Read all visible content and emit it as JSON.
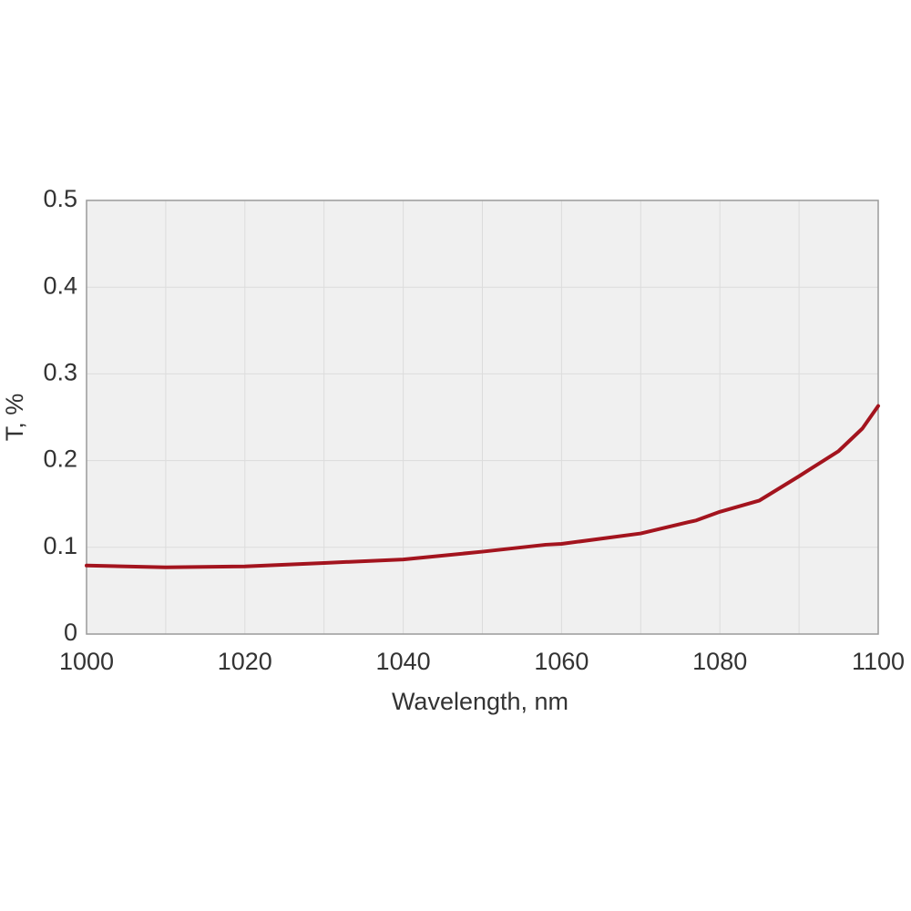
{
  "chart_data": {
    "type": "line",
    "x_label": "Wavelength, nm",
    "y_label": "T, %",
    "x": [
      1000,
      1010,
      1020,
      1030,
      1040,
      1050,
      1058,
      1060,
      1070,
      1076,
      1077,
      1080,
      1085,
      1090,
      1095,
      1098,
      1100
    ],
    "values": [
      0.079,
      0.077,
      0.078,
      0.082,
      0.086,
      0.095,
      0.103,
      0.104,
      0.116,
      0.129,
      0.131,
      0.141,
      0.154,
      0.182,
      0.211,
      0.237,
      0.263
    ],
    "color": "#a3141e",
    "xlim": [
      1000,
      1100
    ],
    "xticks": [
      1000,
      1020,
      1040,
      1060,
      1080,
      1100
    ],
    "x_minor_grid": [
      1010,
      1030,
      1050,
      1070,
      1090
    ],
    "ylim": [
      0,
      0.5
    ],
    "yticks": [
      0,
      0.1,
      0.2,
      0.3,
      0.4,
      0.5
    ],
    "grid": true
  }
}
